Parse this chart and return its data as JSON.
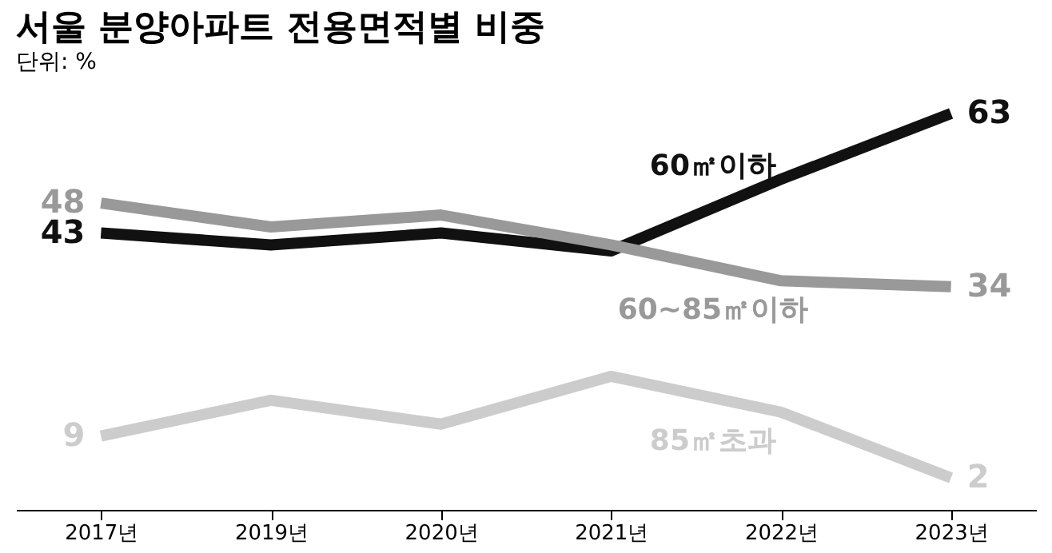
{
  "chart_data": {
    "type": "line",
    "title": "서울 분양아파트 전용면적별 비중",
    "subtitle": "단위: %",
    "categories": [
      "2017년",
      "2019년",
      "2020년",
      "2021년",
      "2022년",
      "2023년"
    ],
    "series": [
      {
        "name": "60㎡이하",
        "color": "#111111",
        "values": [
          43,
          41,
          43,
          40,
          52,
          63
        ],
        "value_labels": [
          "43",
          null,
          null,
          null,
          null,
          "63"
        ]
      },
      {
        "name": "60~85㎡이하",
        "color": "#999999",
        "values": [
          48,
          44,
          46,
          41,
          35,
          34
        ],
        "value_labels": [
          "48",
          null,
          null,
          null,
          null,
          "34"
        ]
      },
      {
        "name": "85㎡초과",
        "color": "#cccccc",
        "values": [
          9,
          15,
          11,
          19,
          13,
          2
        ],
        "value_labels": [
          "9",
          null,
          null,
          null,
          null,
          "2"
        ]
      }
    ],
    "tick_labels": "x",
    "grid": false,
    "legend": false,
    "marker": "none",
    "line_style": "solid"
  }
}
